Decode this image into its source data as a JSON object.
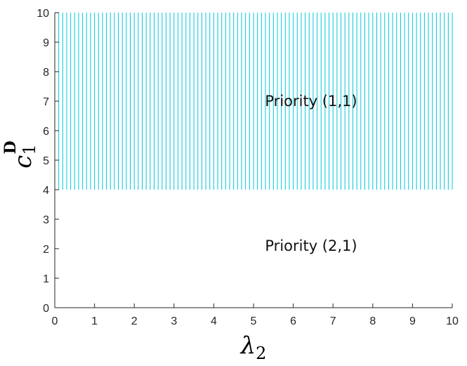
{
  "chart_data": {
    "type": "area",
    "title": "",
    "xlabel": "λ",
    "xlabel_sub": "2",
    "ylabel": "c",
    "ylabel_sub": "1",
    "ylabel_sup": "D",
    "xlim": [
      0,
      10
    ],
    "ylim": [
      0,
      10
    ],
    "xticks": [
      "0",
      "1",
      "2",
      "3",
      "4",
      "5",
      "6",
      "7",
      "8",
      "9",
      "10"
    ],
    "yticks": [
      "0",
      "1",
      "2",
      "3",
      "4",
      "5",
      "6",
      "7",
      "8",
      "9",
      "10"
    ],
    "grid": false,
    "regions": [
      {
        "label": "Priority (1,1)",
        "x_range": [
          0,
          10
        ],
        "y_range": [
          4,
          10
        ],
        "fill": "vertical-hatch",
        "color": "#00c8dc",
        "label_position": {
          "x": 5,
          "y": 7
        }
      },
      {
        "label": "Priority (2,1)",
        "x_range": [
          0,
          10
        ],
        "y_range": [
          0,
          4
        ],
        "fill": "none",
        "label_position": {
          "x": 5,
          "y": 2.1
        }
      }
    ],
    "hatch_step": 0.1
  }
}
